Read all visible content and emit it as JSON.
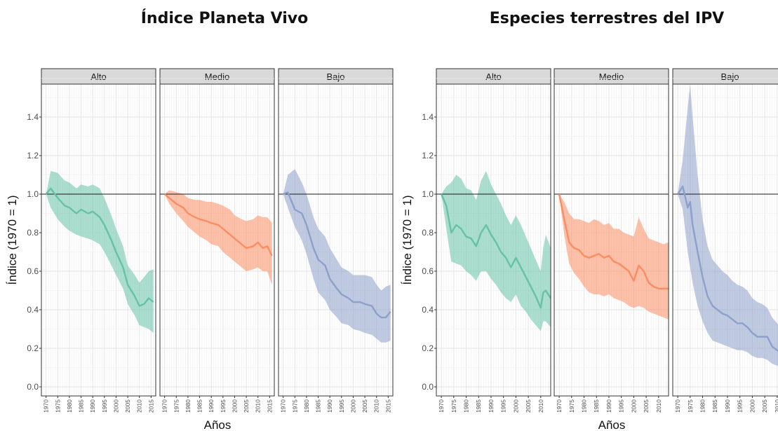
{
  "colors": {
    "Alto": "#66c2a5",
    "Medio": "#fc8d62",
    "Bajo": "#8da0cb"
  },
  "chart_data": [
    {
      "type": "area",
      "title": "Índice Planeta Vivo",
      "xlabel": "Años",
      "ylabel": "Índice (1970 = 1)",
      "ylim": [
        0,
        1.5
      ],
      "yticks": [
        0.0,
        0.2,
        0.4,
        0.6,
        0.8,
        1.0,
        1.2,
        1.4
      ],
      "xlim": [
        1968,
        2017
      ],
      "xticks": [
        1970,
        1975,
        1980,
        1985,
        1990,
        1995,
        2000,
        2005,
        2010,
        2015
      ],
      "reference_line": 1.0,
      "grid": true,
      "panels": [
        {
          "name": "Alto",
          "x": [
            1970,
            1972,
            1975,
            1978,
            1980,
            1983,
            1985,
            1988,
            1990,
            1993,
            1995,
            1998,
            2000,
            2003,
            2005,
            2008,
            2010,
            2012,
            2014,
            2016
          ],
          "values": [
            1.0,
            1.03,
            0.98,
            0.94,
            0.93,
            0.9,
            0.92,
            0.9,
            0.91,
            0.88,
            0.84,
            0.76,
            0.7,
            0.62,
            0.53,
            0.47,
            0.42,
            0.43,
            0.46,
            0.44
          ],
          "lower": [
            1.0,
            0.93,
            0.87,
            0.83,
            0.81,
            0.79,
            0.78,
            0.77,
            0.76,
            0.74,
            0.7,
            0.63,
            0.58,
            0.51,
            0.43,
            0.37,
            0.32,
            0.31,
            0.3,
            0.28
          ],
          "upper": [
            1.0,
            1.12,
            1.11,
            1.07,
            1.06,
            1.03,
            1.05,
            1.04,
            1.05,
            1.03,
            0.98,
            0.89,
            0.82,
            0.73,
            0.63,
            0.58,
            0.54,
            0.57,
            0.6,
            0.61
          ]
        },
        {
          "name": "Medio",
          "x": [
            1970,
            1972,
            1975,
            1978,
            1980,
            1983,
            1985,
            1988,
            1990,
            1993,
            1995,
            1998,
            2000,
            2003,
            2005,
            2008,
            2010,
            2012,
            2014,
            2016
          ],
          "values": [
            1.0,
            0.98,
            0.95,
            0.93,
            0.9,
            0.88,
            0.87,
            0.86,
            0.85,
            0.84,
            0.82,
            0.79,
            0.77,
            0.74,
            0.72,
            0.73,
            0.75,
            0.72,
            0.73,
            0.68
          ],
          "lower": [
            1.0,
            0.95,
            0.9,
            0.86,
            0.83,
            0.8,
            0.78,
            0.76,
            0.74,
            0.73,
            0.7,
            0.67,
            0.65,
            0.62,
            0.6,
            0.61,
            0.62,
            0.6,
            0.6,
            0.53
          ],
          "upper": [
            1.0,
            1.02,
            1.01,
            1.0,
            0.98,
            0.97,
            0.97,
            0.96,
            0.96,
            0.95,
            0.94,
            0.92,
            0.89,
            0.87,
            0.86,
            0.87,
            0.89,
            0.88,
            0.88,
            0.85
          ]
        },
        {
          "name": "Bajo",
          "x": [
            1970,
            1972,
            1975,
            1978,
            1980,
            1983,
            1985,
            1988,
            1990,
            1993,
            1995,
            1998,
            2000,
            2003,
            2005,
            2008,
            2010,
            2012,
            2014,
            2016
          ],
          "values": [
            1.0,
            1.01,
            0.92,
            0.9,
            0.84,
            0.72,
            0.66,
            0.63,
            0.56,
            0.51,
            0.48,
            0.46,
            0.44,
            0.44,
            0.43,
            0.42,
            0.38,
            0.36,
            0.36,
            0.39
          ],
          "lower": [
            1.0,
            0.93,
            0.83,
            0.76,
            0.69,
            0.56,
            0.49,
            0.45,
            0.4,
            0.36,
            0.33,
            0.32,
            0.3,
            0.29,
            0.28,
            0.27,
            0.25,
            0.23,
            0.23,
            0.24
          ],
          "upper": [
            1.0,
            1.1,
            1.13,
            1.06,
            1.0,
            0.88,
            0.82,
            0.78,
            0.72,
            0.66,
            0.62,
            0.6,
            0.58,
            0.58,
            0.58,
            0.57,
            0.53,
            0.5,
            0.52,
            0.53
          ]
        }
      ]
    },
    {
      "type": "area",
      "title": "Especies terrestres del IPV",
      "xlabel": "Años",
      "ylabel": "Índice (1970 = 1)",
      "ylim": [
        0,
        1.5
      ],
      "yticks": [
        0.0,
        0.2,
        0.4,
        0.6,
        0.8,
        1.0,
        1.2,
        1.4
      ],
      "xlim": [
        1968,
        2014
      ],
      "xticks": [
        1970,
        1975,
        1980,
        1985,
        1990,
        1995,
        2000,
        2005,
        2010
      ],
      "reference_line": 1.0,
      "grid": true,
      "panels": [
        {
          "name": "Alto",
          "x": [
            1970,
            1972,
            1974,
            1976,
            1978,
            1980,
            1982,
            1984,
            1986,
            1988,
            1990,
            1992,
            1994,
            1996,
            1998,
            2000,
            2002,
            2004,
            2006,
            2008,
            2010,
            2011,
            2012,
            2014
          ],
          "values": [
            1.0,
            0.94,
            0.8,
            0.84,
            0.82,
            0.78,
            0.77,
            0.73,
            0.8,
            0.84,
            0.79,
            0.75,
            0.7,
            0.67,
            0.62,
            0.67,
            0.62,
            0.57,
            0.52,
            0.47,
            0.41,
            0.49,
            0.5,
            0.46
          ],
          "lower": [
            1.0,
            0.82,
            0.65,
            0.64,
            0.63,
            0.6,
            0.58,
            0.55,
            0.6,
            0.6,
            0.56,
            0.53,
            0.49,
            0.46,
            0.44,
            0.48,
            0.42,
            0.39,
            0.35,
            0.32,
            0.29,
            0.34,
            0.34,
            0.31
          ],
          "upper": [
            1.0,
            1.04,
            1.06,
            1.1,
            1.08,
            1.03,
            1.02,
            0.97,
            1.07,
            1.12,
            1.05,
            1.0,
            0.95,
            0.89,
            0.84,
            0.89,
            0.84,
            0.78,
            0.72,
            0.66,
            0.6,
            0.72,
            0.79,
            0.72
          ]
        },
        {
          "name": "Medio",
          "x": [
            1970,
            1972,
            1974,
            1976,
            1978,
            1980,
            1982,
            1984,
            1986,
            1988,
            1990,
            1992,
            1994,
            1996,
            1998,
            2000,
            2002,
            2004,
            2006,
            2008,
            2010,
            2012,
            2014
          ],
          "values": [
            1.0,
            0.87,
            0.75,
            0.72,
            0.71,
            0.68,
            0.67,
            0.68,
            0.69,
            0.67,
            0.68,
            0.65,
            0.64,
            0.62,
            0.6,
            0.55,
            0.63,
            0.6,
            0.54,
            0.52,
            0.51,
            0.51,
            0.51
          ],
          "lower": [
            1.0,
            0.79,
            0.64,
            0.59,
            0.56,
            0.52,
            0.49,
            0.48,
            0.48,
            0.47,
            0.48,
            0.46,
            0.45,
            0.44,
            0.42,
            0.41,
            0.42,
            0.41,
            0.39,
            0.38,
            0.37,
            0.36,
            0.35
          ],
          "upper": [
            1.0,
            0.96,
            0.9,
            0.87,
            0.87,
            0.86,
            0.85,
            0.87,
            0.86,
            0.84,
            0.85,
            0.82,
            0.82,
            0.8,
            0.79,
            0.78,
            0.88,
            0.82,
            0.77,
            0.76,
            0.75,
            0.74,
            0.75
          ]
        },
        {
          "name": "Bajo",
          "x": [
            1970,
            1972,
            1974,
            1975,
            1976,
            1978,
            1980,
            1982,
            1984,
            1986,
            1988,
            1990,
            1992,
            1994,
            1996,
            1998,
            2000,
            2002,
            2004,
            2006,
            2008,
            2010,
            2012,
            2014
          ],
          "values": [
            1.0,
            1.04,
            0.93,
            0.96,
            0.84,
            0.7,
            0.57,
            0.47,
            0.42,
            0.4,
            0.38,
            0.37,
            0.35,
            0.33,
            0.33,
            0.31,
            0.28,
            0.26,
            0.26,
            0.26,
            0.21,
            0.19,
            0.18,
            0.16
          ],
          "lower": [
            1.0,
            0.92,
            0.7,
            0.62,
            0.54,
            0.42,
            0.34,
            0.28,
            0.24,
            0.23,
            0.22,
            0.21,
            0.2,
            0.19,
            0.19,
            0.18,
            0.16,
            0.15,
            0.15,
            0.14,
            0.12,
            0.11,
            0.1,
            0.09
          ],
          "upper": [
            1.0,
            1.18,
            1.45,
            1.57,
            1.4,
            1.1,
            0.87,
            0.73,
            0.66,
            0.63,
            0.6,
            0.58,
            0.55,
            0.53,
            0.52,
            0.5,
            0.46,
            0.44,
            0.43,
            0.41,
            0.36,
            0.33,
            0.3,
            0.28
          ]
        }
      ]
    }
  ]
}
